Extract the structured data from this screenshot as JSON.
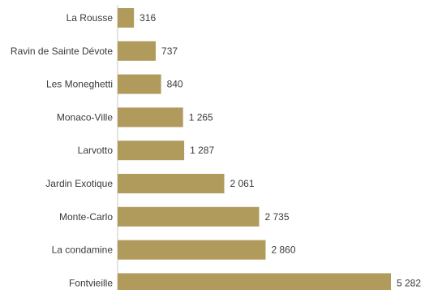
{
  "chart_data": {
    "type": "bar",
    "orientation": "horizontal",
    "categories": [
      "La Rousse",
      "Ravin de Sainte Dévote",
      "Les Moneghetti",
      "Monaco-Ville",
      "Larvotto",
      "Jardin Exotique",
      "Monte-Carlo",
      "La condamine",
      "Fontvieille"
    ],
    "values": [
      316,
      737,
      840,
      1265,
      1287,
      2061,
      2735,
      2860,
      5282
    ],
    "value_labels": [
      "316",
      "737",
      "840",
      "1 265",
      "1 287",
      "2 061",
      "2 735",
      "2 860",
      "5 282"
    ],
    "title": "",
    "xlabel": "",
    "ylabel": "",
    "xlim": [
      0,
      5282
    ],
    "grid": false,
    "legend": "none",
    "bar_color": "#b09a5c"
  }
}
